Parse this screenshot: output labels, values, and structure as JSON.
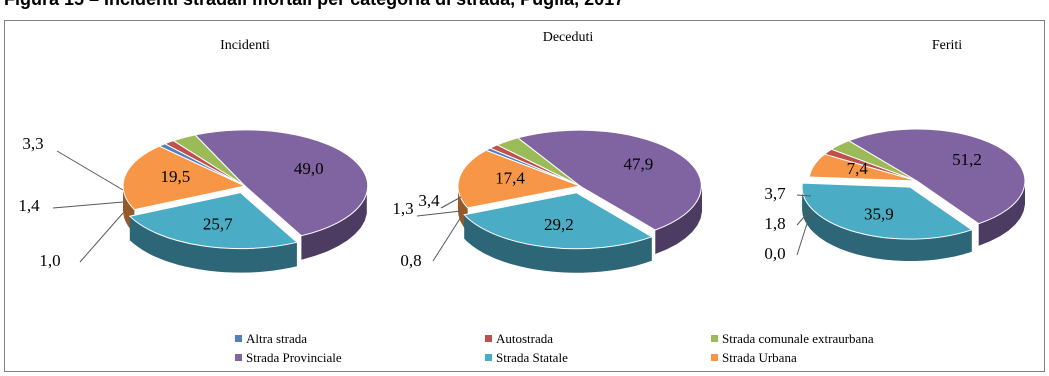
{
  "caption": "Figura 15 – Incidenti stradali mortali per categoria di strada, Puglia, 2017",
  "colors": {
    "Altra strada": "#4f81bd",
    "Autostrada": "#c0504d",
    "Strada comunale extraurbana": "#9bbb59",
    "Strada Provinciale": "#8064a2",
    "Strada Statale": "#4bacc6",
    "Strada Urbana": "#f79646"
  },
  "chart_data": [
    {
      "type": "pie",
      "title": "Incidenti",
      "categories": [
        "Altra strada",
        "Autostrada",
        "Strada comunale extraurbana",
        "Strada Provinciale",
        "Strada Statale",
        "Strada Urbana"
      ],
      "values": [
        1.0,
        1.4,
        3.3,
        49.0,
        25.7,
        19.5
      ],
      "legend": "bottom",
      "exploded": [
        "Strada Statale"
      ]
    },
    {
      "type": "pie",
      "title": "Deceduti",
      "categories": [
        "Altra strada",
        "Autostrada",
        "Strada comunale extraurbana",
        "Strada Provinciale",
        "Strada Statale",
        "Strada Urbana"
      ],
      "values": [
        0.8,
        1.3,
        3.4,
        47.9,
        29.2,
        17.4
      ],
      "legend": "bottom",
      "exploded": [
        "Strada Statale"
      ]
    },
    {
      "type": "pie",
      "title": "Feriti",
      "categories": [
        "Altra strada",
        "Autostrada",
        "Strada comunale extraurbana",
        "Strada Provinciale",
        "Strada Statale",
        "Strada Urbana"
      ],
      "values": [
        0.0,
        1.8,
        3.7,
        51.2,
        35.9,
        7.4
      ],
      "legend": "bottom",
      "exploded": [
        "Strada Statale"
      ]
    }
  ]
}
